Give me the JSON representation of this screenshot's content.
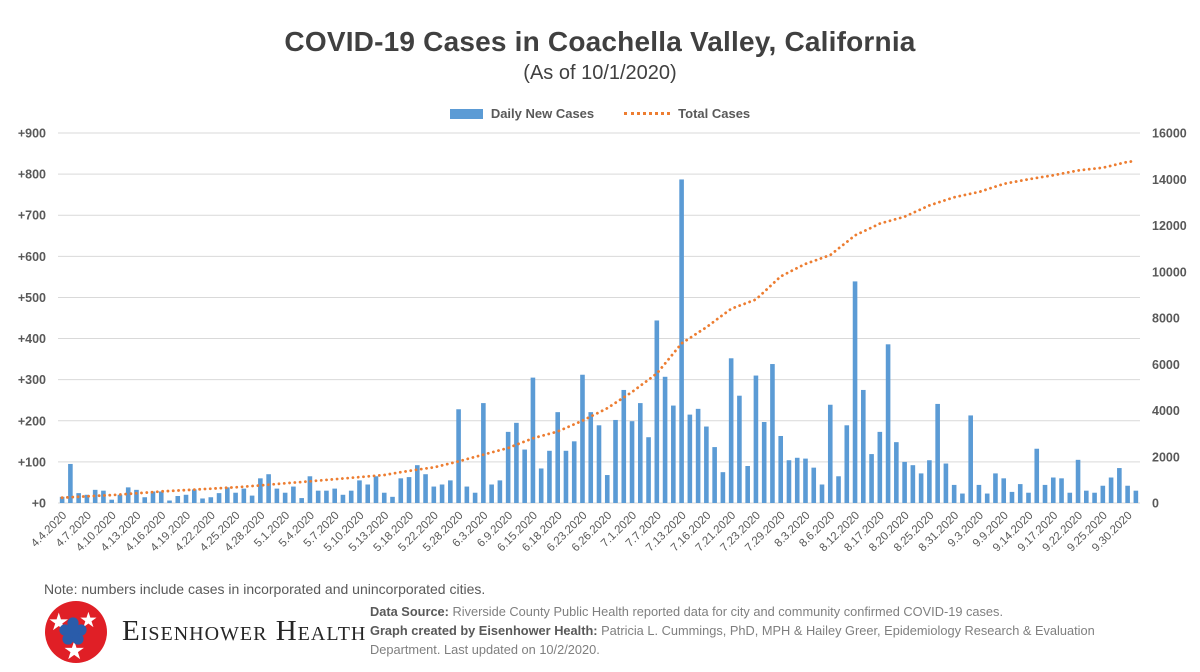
{
  "title": "COVID-19 Cases in Coachella Valley, California",
  "subtitle": "(As of 10/1/2020)",
  "legend": {
    "daily_label": "Daily New Cases",
    "total_label": "Total Cases"
  },
  "colors": {
    "bar": "#5B9BD5",
    "line": "#ED7D31",
    "grid": "#D9D9D9",
    "axis_text": "#595959",
    "tick_text": "#595959",
    "title_text": "#404040",
    "logo_red": "#E01F26",
    "logo_blue": "#2A5CAA"
  },
  "chart_data": {
    "type": "bar",
    "title": "COVID-19 Cases in Coachella Valley, California",
    "subtitle": "(As of 10/1/2020)",
    "legend_position": "top",
    "grid": "horizontal",
    "left_axis": {
      "min": 0,
      "max": 900,
      "step": 100,
      "tick_prefix": "+"
    },
    "right_axis": {
      "min": 0,
      "max": 16000,
      "step": 2000,
      "tick_prefix": ""
    },
    "x_tick_labels": [
      "4.4.2020",
      "4.7.2020",
      "4.10.2020",
      "4.13.2020",
      "4.16.2020",
      "4.19.2020",
      "4.22.2020",
      "4.25.2020",
      "4.28.2020",
      "5.1.2020",
      "5.4.2020",
      "5.7.2020",
      "5.10.2020",
      "5.13.2020",
      "5.18.2020",
      "5.22.2020",
      "5.28.2020",
      "6.3.2020",
      "6.9.2020",
      "6.15.2020",
      "6.18.2020",
      "6.23.2020",
      "6.26.2020",
      "7.1.2020",
      "7.7.2020",
      "7.13.2020",
      "7.16.2020",
      "7.21.2020",
      "7.23.2020",
      "7.29.2020",
      "8.3.2020",
      "8.6.2020",
      "8.12.2020",
      "8.17.2020",
      "8.20.2020",
      "8.25.2020",
      "8.31.2020",
      "9.3.2020",
      "9.9.2020",
      "9.14.2020",
      "9.17.2020",
      "9.22.2020",
      "9.25.2020",
      "9.30.2020"
    ],
    "label_every": 3,
    "series": [
      {
        "name": "Daily New Cases",
        "type": "bar",
        "axis": "left",
        "values": [
          15,
          95,
          24,
          20,
          32,
          30,
          8,
          20,
          38,
          32,
          14,
          28,
          28,
          6,
          17,
          20,
          33,
          11,
          14,
          24,
          38,
          25,
          35,
          18,
          60,
          70,
          35,
          25,
          40,
          12,
          65,
          30,
          30,
          35,
          20,
          30,
          55,
          45,
          65,
          25,
          15,
          60,
          63,
          92,
          70,
          40,
          45,
          55,
          228,
          40,
          25,
          243,
          45,
          55,
          173,
          195,
          130,
          305,
          84,
          127,
          221,
          127,
          150,
          312,
          221,
          189,
          68,
          202,
          275,
          199,
          243,
          160,
          444,
          307,
          237,
          787,
          215,
          229,
          186,
          136,
          75,
          352,
          261,
          90,
          310,
          197,
          338,
          163,
          104,
          110,
          108,
          86,
          45,
          239,
          65,
          189,
          539,
          275,
          119,
          173,
          386,
          148,
          100,
          92,
          72,
          104,
          241,
          96,
          44,
          23,
          213,
          44,
          23,
          72,
          60,
          27,
          46,
          25,
          132,
          44,
          62,
          60,
          25,
          105,
          30,
          25,
          42,
          62,
          85,
          42,
          30
        ]
      },
      {
        "name": "Total Cases",
        "type": "dotted-line",
        "axis": "right",
        "anchor_indices": [
          0,
          3,
          6,
          9,
          12,
          15,
          18,
          21,
          24,
          27,
          30,
          33,
          36,
          39,
          42,
          45,
          48,
          51,
          54,
          57,
          60,
          63,
          66,
          69,
          72,
          75,
          78,
          81,
          84,
          87,
          90,
          93,
          96,
          99,
          102,
          105,
          108,
          111,
          114,
          117,
          120,
          123,
          126,
          129,
          130
        ],
        "anchor_values": [
          230,
          290,
          340,
          420,
          500,
          560,
          620,
          680,
          760,
          850,
          940,
          1030,
          1120,
          1210,
          1390,
          1540,
          1800,
          2090,
          2380,
          2800,
          3090,
          3560,
          4100,
          4800,
          5600,
          6900,
          7600,
          8400,
          8800,
          9800,
          10340,
          10720,
          11570,
          12080,
          12380,
          12870,
          13220,
          13450,
          13800,
          14000,
          14170,
          14380,
          14500,
          14750,
          14790
        ]
      }
    ]
  },
  "note": "Note: numbers include cases in incorporated and unincorporated cities.",
  "logo": {
    "wordmark": "Eisenhower Health"
  },
  "footer": {
    "source_label": "Data Source:",
    "source_text": " Riverside County Public Health reported data for city and community confirmed COVID-19 cases.",
    "credit_label": "Graph created by Eisenhower Health:",
    "credit_text": " Patricia L. Cummings, PhD, MPH & Hailey Greer, Epidemiology Research & Evaluation",
    "credit_text2": "Department. Last updated on 10/2/2020."
  }
}
